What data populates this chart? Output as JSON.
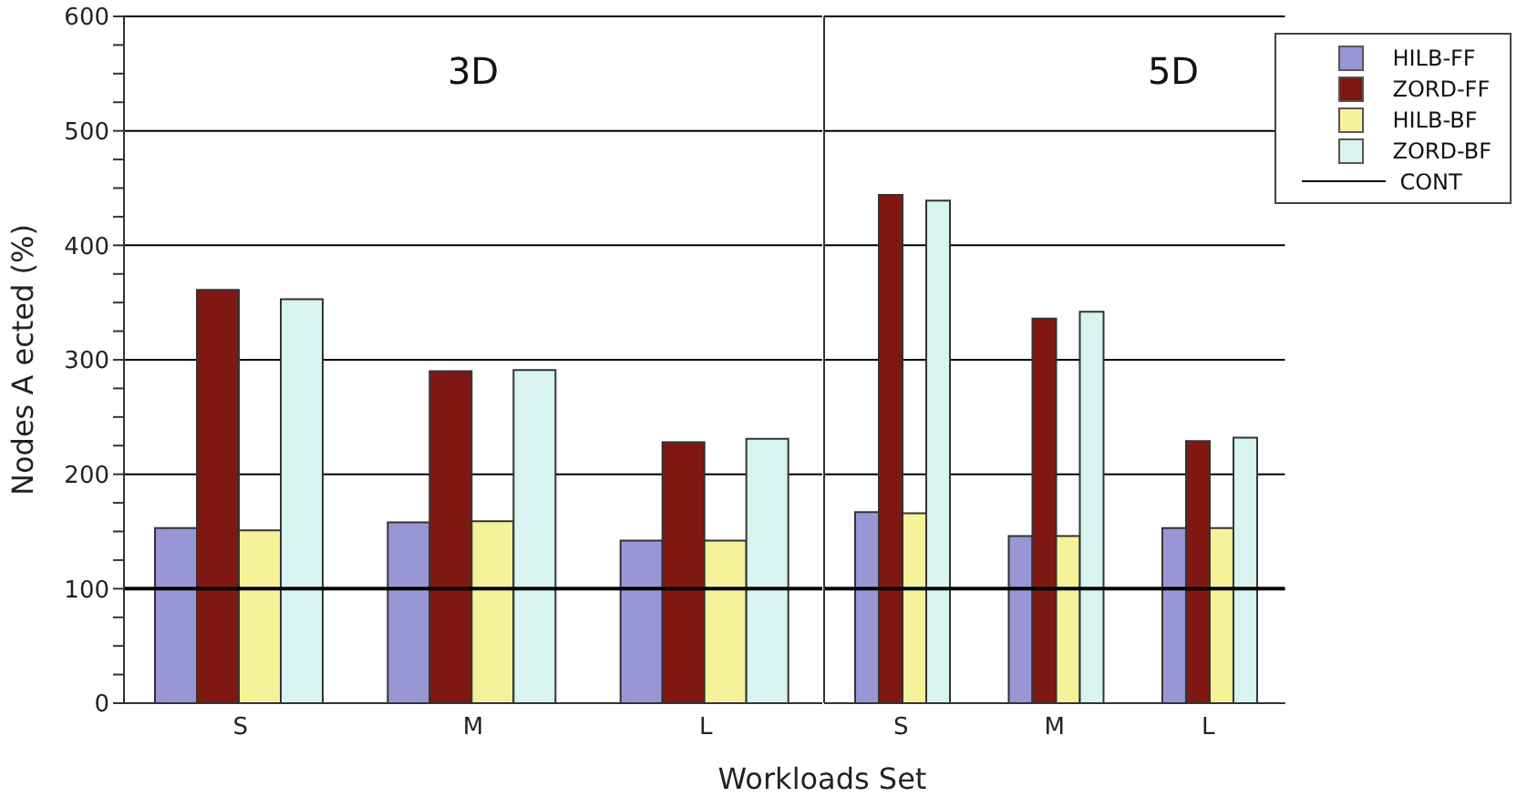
{
  "chart_data": [
    {
      "type": "bar",
      "title": "3D",
      "xlabel": "Workloads Set",
      "ylabel": "Nodes A  ected (%)",
      "categories": [
        "S",
        "M",
        "L"
      ],
      "series": [
        {
          "color": "#9896d4",
          "values": [
            153,
            158,
            142
          ]
        },
        {
          "color": "#7f1813",
          "values": [
            361,
            290,
            228
          ]
        },
        {
          "color": "#f5f29a",
          "values": [
            151,
            159,
            142
          ]
        },
        {
          "color": "#d8f4f1",
          "values": [
            353,
            291,
            231
          ]
        }
      ],
      "ylim": [
        0,
        600
      ],
      "yticks": [
        0,
        {
          "value": 25,
          "label": null
        },
        {
          "value": 50,
          "label": null
        },
        {
          "value": 75,
          "label": null
        },
        100,
        {
          "value": 125,
          "label": null
        },
        {
          "value": 150,
          "label": null
        },
        {
          "value": 175,
          "label": null
        },
        200,
        {
          "value": 225,
          "label": null
        },
        {
          "value": 250,
          "label": null
        },
        {
          "value": 275,
          "label": null
        },
        300,
        {
          "value": 325,
          "label": null
        },
        {
          "value": 350,
          "label": null
        },
        {
          "value": 375,
          "label": null
        },
        400,
        {
          "value": 425,
          "label": null
        },
        {
          "value": 450,
          "label": null
        },
        {
          "value": 475,
          "label": null
        },
        500,
        {
          "value": 525,
          "label": null
        },
        {
          "value": 550,
          "label": null
        },
        {
          "value": 575,
          "label": null
        },
        600
      ],
      "grid": "y",
      "legend": false,
      "ref_lines": [
        {
          "axis": "y",
          "value": 100,
          "color": "#000000"
        }
      ]
    },
    {
      "type": "bar",
      "title": "5D",
      "categories": [
        "S",
        "M",
        "L"
      ],
      "series": [
        {
          "name": "HILB-FF",
          "color": "#9896d4",
          "values": [
            167,
            146,
            153
          ]
        },
        {
          "name": "ZORD-FF",
          "color": "#7f1813",
          "values": [
            444,
            336,
            229
          ]
        },
        {
          "name": "HILB-BF",
          "color": "#f5f29a",
          "values": [
            166,
            146,
            153
          ]
        },
        {
          "name": "ZORD-BF",
          "color": "#d8f4f1",
          "values": [
            439,
            342,
            232
          ]
        }
      ],
      "ylim": [
        0,
        600
      ],
      "yticks": [
        0,
        100,
        200,
        300,
        400,
        500,
        600
      ],
      "tick_labels": "x",
      "grid": "y",
      "legend": "top right",
      "ref_lines": [
        {
          "axis": "y",
          "value": 100,
          "label": "CONT",
          "color": "#000000"
        }
      ]
    }
  ]
}
